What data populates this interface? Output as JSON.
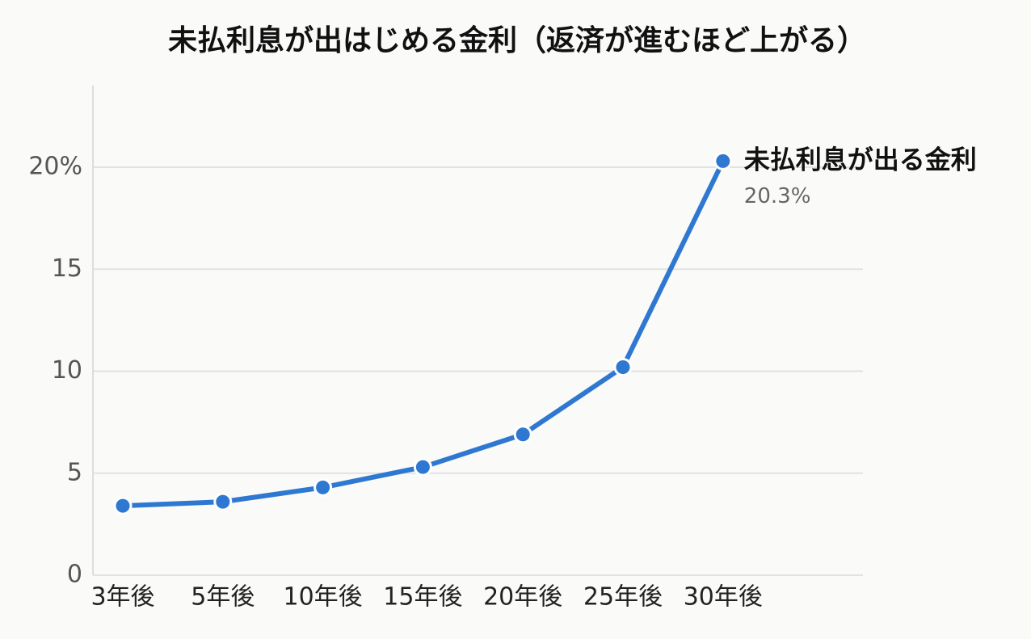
{
  "chart_data": {
    "type": "line",
    "title": "未払利息が出はじめる金利（返済が進むほど上がる）",
    "categories": [
      "3年後",
      "5年後",
      "10年後",
      "15年後",
      "20年後",
      "25年後",
      "30年後"
    ],
    "series": [
      {
        "name": "未払利息が出る金利",
        "color": "#2e78d2",
        "values": [
          3.4,
          3.6,
          4.3,
          5.3,
          6.9,
          10.2,
          20.3
        ],
        "value_labels": [
          null,
          null,
          null,
          null,
          null,
          null,
          "20.3%"
        ]
      }
    ],
    "ylim": [
      0,
      24
    ],
    "yticks": [
      0,
      5,
      10,
      15,
      {
        "value": 20,
        "label": "20%"
      }
    ],
    "grid": true
  }
}
